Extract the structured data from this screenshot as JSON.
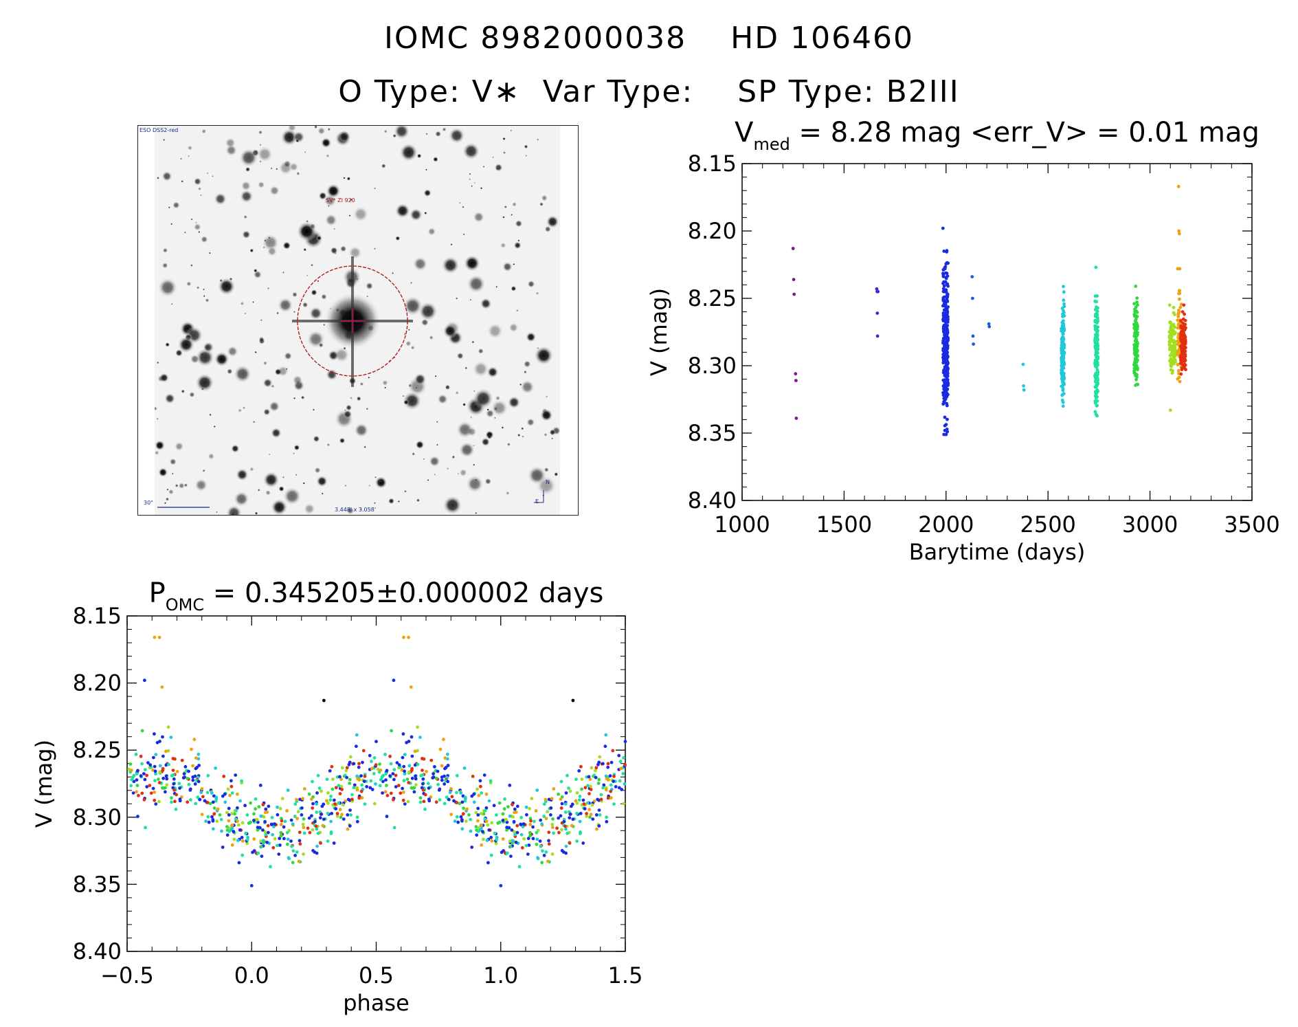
{
  "header": {
    "line1": "IOMC 8982000038    HD 106460",
    "line2": "O Type: V∗  Var Type:    SP Type: B2III"
  },
  "sky_image": {
    "survey_label": "ESO DSS2-red",
    "object_label": "SV* ZI 920",
    "scale_label": "30\"",
    "fov_label": "3.448' x 3.058'",
    "compass_n": "N",
    "compass_e": "E"
  },
  "chart_data": [
    {
      "type": "scatter",
      "title_main": "V",
      "title_sub": "med",
      "title_rest": " = 8.28 mag <err_V> = 0.01 mag",
      "xlabel": "Barytime (days)",
      "ylabel": "V (mag)",
      "xlim": [
        1000,
        3500
      ],
      "ylim": [
        8.4,
        8.15
      ],
      "y_inverted": true,
      "xticks": [
        "1000",
        "1500",
        "2000",
        "2500",
        "3000",
        "3500"
      ],
      "yticks": [
        "8.15",
        "8.20",
        "8.25",
        "8.30",
        "8.35",
        "8.40"
      ],
      "series": [
        {
          "color": "#7a1a8a",
          "x": [
            1250,
            1253,
            1255,
            1262,
            1264,
            1266
          ],
          "y": [
            8.213,
            8.236,
            8.247,
            8.306,
            8.311,
            8.339
          ]
        },
        {
          "color": "#3a2acf",
          "x": [
            1660,
            1662,
            1663,
            1664,
            1666
          ],
          "y": [
            8.243,
            8.245,
            8.261,
            8.278,
            8.245
          ]
        },
        {
          "color": "#1a2ae0",
          "x": [
            1985,
            1990,
            1995,
            2000,
            2005,
            2010
          ],
          "y": [
            8.198,
            8.215,
            8.228,
            8.245,
            8.262,
            8.28
          ],
          "dense": {
            "x0": 1985,
            "x1": 2010,
            "y0": 8.198,
            "y1": 8.351,
            "n": 300,
            "center": 8.282
          }
        },
        {
          "color": "#1a60d0",
          "x": [
            2128,
            2130,
            2132,
            2134,
            2210,
            2212
          ],
          "y": [
            8.234,
            8.25,
            8.278,
            8.284,
            8.269,
            8.271
          ]
        },
        {
          "color": "#20c8d8",
          "x": [
            2378,
            2380,
            2382
          ],
          "y": [
            8.299,
            8.315,
            8.318
          ],
          "dense": {
            "x0": 2565,
            "x1": 2580,
            "y0": 8.236,
            "y1": 8.33,
            "n": 160,
            "center": 8.29
          }
        },
        {
          "color": "#20e0a0",
          "x": [
            2735
          ],
          "y": [
            8.227
          ],
          "dense": {
            "x0": 2730,
            "x1": 2745,
            "y0": 8.227,
            "y1": 8.341,
            "n": 170,
            "center": 8.29
          }
        },
        {
          "color": "#30d840",
          "x": [
            2930
          ],
          "y": [
            8.241
          ],
          "dense": {
            "x0": 2922,
            "x1": 2940,
            "y0": 8.241,
            "y1": 8.315,
            "n": 140,
            "center": 8.285
          }
        },
        {
          "color": "#a0e020",
          "x": [
            3100
          ],
          "y": [
            8.333
          ],
          "dense": {
            "x0": 3095,
            "x1": 3125,
            "y0": 8.255,
            "y1": 8.31,
            "n": 100,
            "center": 8.283
          }
        },
        {
          "color": "#f0a010",
          "x": [
            3140,
            3142,
            3144,
            3146
          ],
          "y": [
            8.167,
            8.2,
            8.202,
            8.228
          ],
          "dense": {
            "x0": 3135,
            "x1": 3155,
            "y0": 8.228,
            "y1": 8.32,
            "n": 60,
            "center": 8.28
          }
        },
        {
          "color": "#e03010",
          "x": [
            3160
          ],
          "y": [
            8.26
          ],
          "dense": {
            "x0": 3150,
            "x1": 3175,
            "y0": 8.255,
            "y1": 8.31,
            "n": 120,
            "center": 8.283
          }
        }
      ]
    },
    {
      "type": "scatter",
      "title_main": "P",
      "title_sub": "OMC",
      "title_rest": " = 0.345205±0.000002 days",
      "xlabel": "phase",
      "ylabel": "V (mag)",
      "xlim": [
        -0.5,
        1.5
      ],
      "ylim": [
        8.4,
        8.15
      ],
      "y_inverted": true,
      "xticks": [
        "−0.5",
        "0.0",
        "0.5",
        "1.0",
        "1.5"
      ],
      "yticks": [
        "8.15",
        "8.20",
        "8.25",
        "8.30",
        "8.35",
        "8.40"
      ],
      "folded_curve": {
        "min_phase": 0.12,
        "max_phase": 0.6,
        "mean": 8.288,
        "amplitude": 0.022,
        "scatter": 0.022
      },
      "highlight_points": [
        {
          "x": -0.39,
          "y": 8.166,
          "color": "#f0a010"
        },
        {
          "x": -0.37,
          "y": 8.166,
          "color": "#f0a010"
        },
        {
          "x": 0.61,
          "y": 8.166,
          "color": "#f0a010"
        },
        {
          "x": 0.63,
          "y": 8.166,
          "color": "#f0a010"
        },
        {
          "x": -0.36,
          "y": 8.203,
          "color": "#f0a010"
        },
        {
          "x": 0.64,
          "y": 8.203,
          "color": "#f0a010"
        },
        {
          "x": 0.29,
          "y": 8.213,
          "color": "#000000"
        },
        {
          "x": 1.29,
          "y": 8.213,
          "color": "#000000"
        },
        {
          "x": 0.0,
          "y": 8.351,
          "color": "#1a2ae0"
        },
        {
          "x": 1.0,
          "y": 8.351,
          "color": "#1a2ae0"
        },
        {
          "x": -0.43,
          "y": 8.198,
          "color": "#1a2ae0"
        },
        {
          "x": 0.57,
          "y": 8.198,
          "color": "#1a2ae0"
        }
      ],
      "colors": [
        "#1a2ae0",
        "#1a2ae0",
        "#1a2ae0",
        "#20c8d8",
        "#20e0a0",
        "#20e0a0",
        "#30d840",
        "#a0e020",
        "#f0a010",
        "#e03010"
      ]
    }
  ]
}
